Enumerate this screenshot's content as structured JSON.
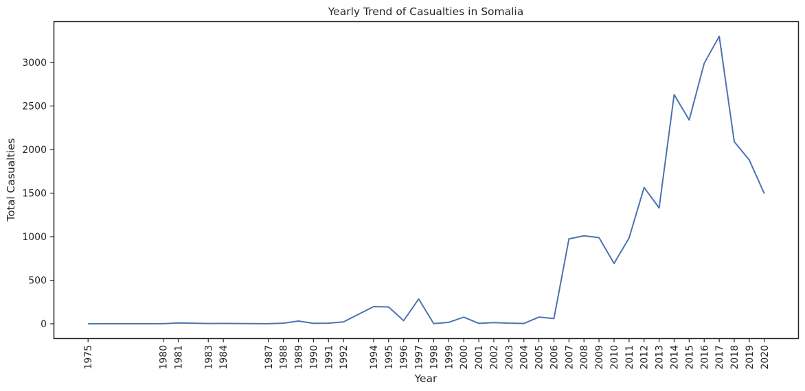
{
  "chart_data": {
    "type": "line",
    "title": "Yearly Trend of Casualties in Somalia",
    "xlabel": "Year",
    "ylabel": "Total Casualties",
    "x": [
      1975,
      1980,
      1981,
      1983,
      1984,
      1987,
      1988,
      1989,
      1990,
      1991,
      1992,
      1994,
      1995,
      1996,
      1997,
      1998,
      1999,
      2000,
      2001,
      2002,
      2003,
      2004,
      2005,
      2006,
      2007,
      2008,
      2009,
      2010,
      2011,
      2012,
      2013,
      2014,
      2015,
      2016,
      2017,
      2018,
      2019,
      2020
    ],
    "series": [
      {
        "values": [
          0,
          1,
          10,
          3,
          4,
          1,
          7,
          32,
          5,
          7,
          22,
          197,
          193,
          36,
          285,
          2,
          17,
          77,
          5,
          14,
          7,
          4,
          77,
          60,
          975,
          1010,
          990,
          693,
          985,
          1565,
          1330,
          2630,
          2340,
          2990,
          3300,
          2090,
          1880,
          1495
        ]
      }
    ],
    "xticks": [
      "1975",
      "1980",
      "1981",
      "1983",
      "1984",
      "1987",
      "1988",
      "1989",
      "1990",
      "1991",
      "1992",
      "1994",
      "1995",
      "1996",
      "1997",
      "1998",
      "1999",
      "2000",
      "2001",
      "2002",
      "2003",
      "2004",
      "2005",
      "2006",
      "2007",
      "2008",
      "2009",
      "2010",
      "2011",
      "2012",
      "2013",
      "2014",
      "2015",
      "2016",
      "2017",
      "2018",
      "2019",
      "2020"
    ],
    "yticks": [
      0,
      500,
      1000,
      1500,
      2000,
      2500,
      3000
    ],
    "xlim": [
      1972.75,
      1822.25
    ],
    "ylim": [
      -165,
      3465
    ],
    "grid": false,
    "line_color": "#4c72b0"
  }
}
